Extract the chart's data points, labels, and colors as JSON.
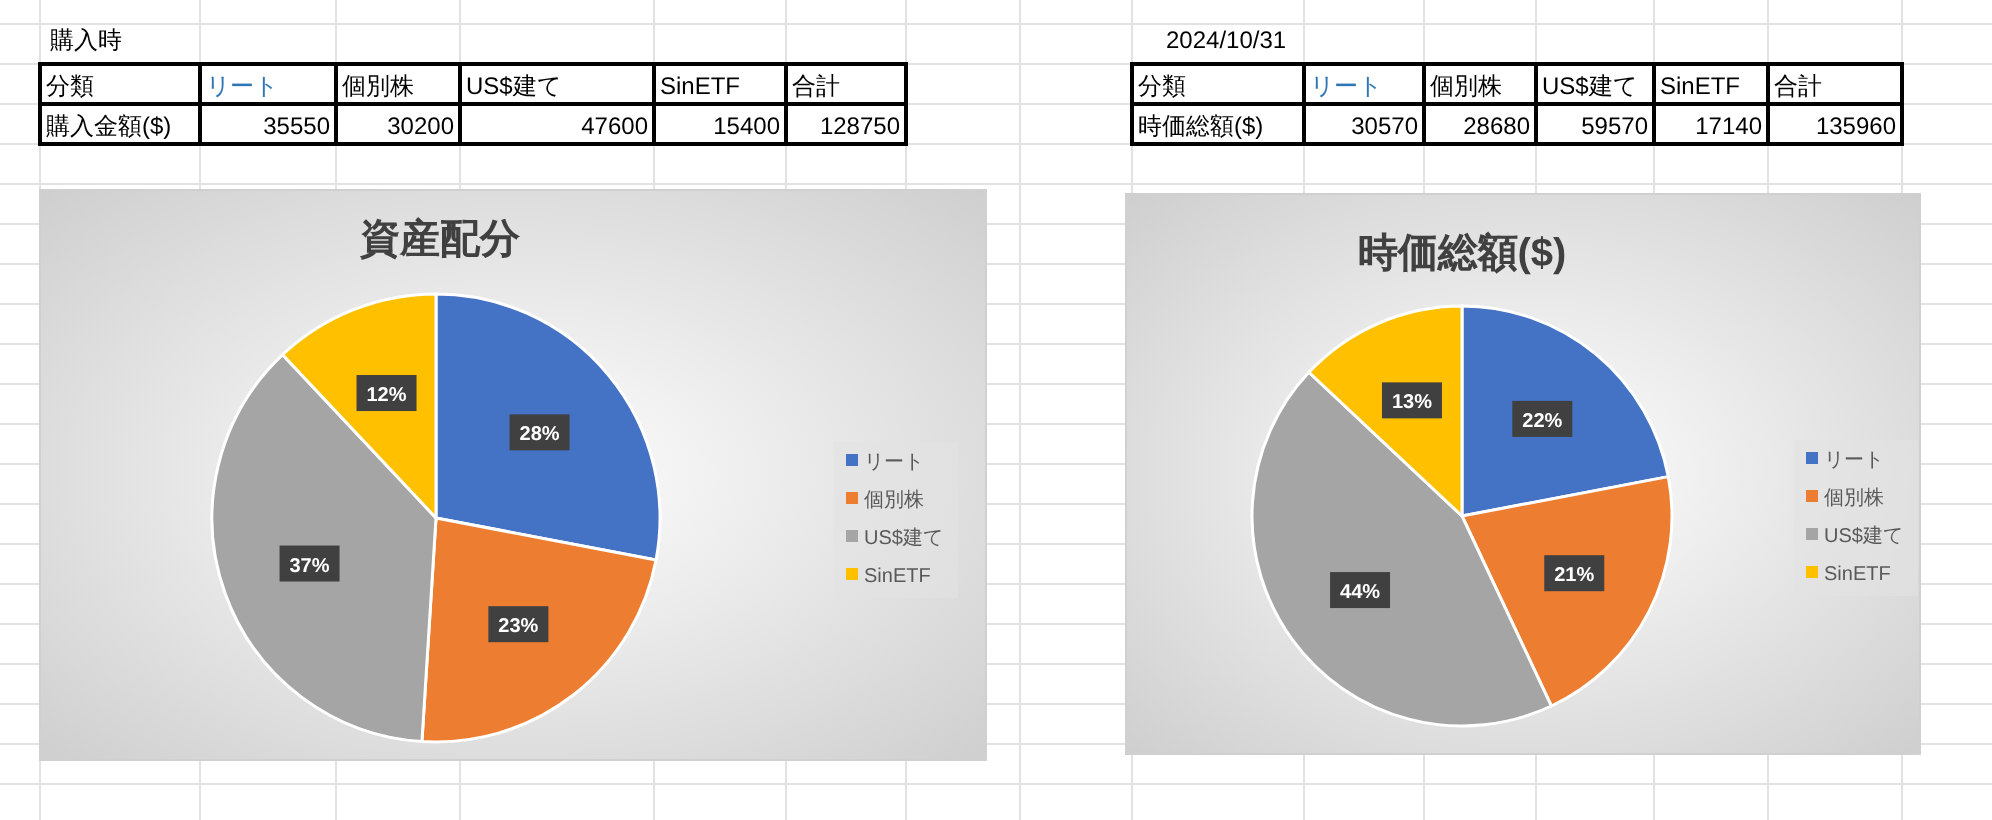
{
  "chart_data": [
    {
      "type": "pie",
      "title": "資産配分",
      "categories": [
        "リート",
        "個別株",
        "US$建て",
        "SinETF"
      ],
      "values": [
        28,
        23,
        37,
        12
      ],
      "value_labels": [
        "28%",
        "23%",
        "37%",
        "12%"
      ],
      "colors": [
        "#4472c4",
        "#ed7d31",
        "#a5a5a5",
        "#ffc000"
      ],
      "annotations": [
        "購入時",
        "分類",
        "購入金額($)",
        "合計",
        "35550",
        "30200",
        "47600",
        "15400",
        "128750"
      ],
      "legend": "right"
    },
    {
      "type": "pie",
      "title": "時価総額($)",
      "categories": [
        "リート",
        "個別株",
        "US$建て",
        "SinETF"
      ],
      "values": [
        22,
        21,
        44,
        13
      ],
      "value_labels": [
        "22%",
        "21%",
        "44%",
        "13%"
      ],
      "colors": [
        "#4472c4",
        "#ed7d31",
        "#a5a5a5",
        "#ffc000"
      ],
      "annotations": [
        "2024/10/31",
        "分類",
        "時価総額($)",
        "合計",
        "30570",
        "28680",
        "59570",
        "17140",
        "135960"
      ],
      "legend": "right"
    }
  ]
}
